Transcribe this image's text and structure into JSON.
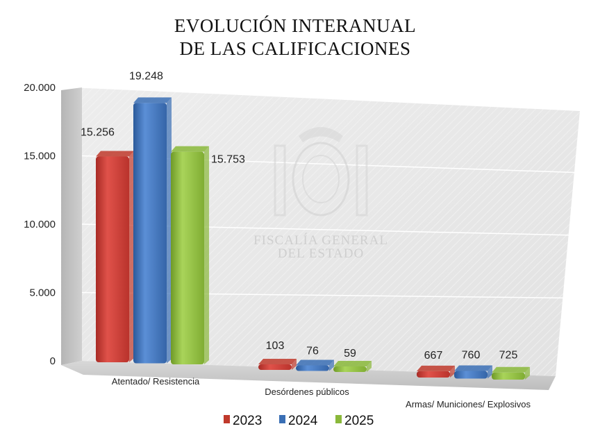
{
  "chart_data": {
    "type": "bar",
    "title_line1": "EVOLUCIÓN INTERANUAL",
    "title_line2": "DE LAS CALIFICACIONES",
    "categories": [
      "Atentado/ Resistencia",
      "Desórdenes públicos",
      "Armas/ Municiones/ Explosivos"
    ],
    "series": [
      {
        "name": "2023",
        "color": "#c0392b",
        "values": [
          15256,
          103,
          667
        ],
        "labels": [
          "15.256",
          "103",
          "667"
        ]
      },
      {
        "name": "2024",
        "color": "#3a6fb5",
        "values": [
          19248,
          76,
          760
        ],
        "labels": [
          "19.248",
          "76",
          "760"
        ]
      },
      {
        "name": "2025",
        "color": "#8ab83a",
        "values": [
          15753,
          59,
          725
        ],
        "labels": [
          "15.753",
          "59",
          "725"
        ]
      }
    ],
    "ylim": [
      0,
      20000
    ],
    "yticks": [
      "0",
      "5.000",
      "10.000",
      "15.000",
      "20.000"
    ],
    "grid": true,
    "legend_position": "bottom",
    "watermark_line1": "FISCALÍA GENERAL",
    "watermark_line2": "DEL ESTADO"
  }
}
